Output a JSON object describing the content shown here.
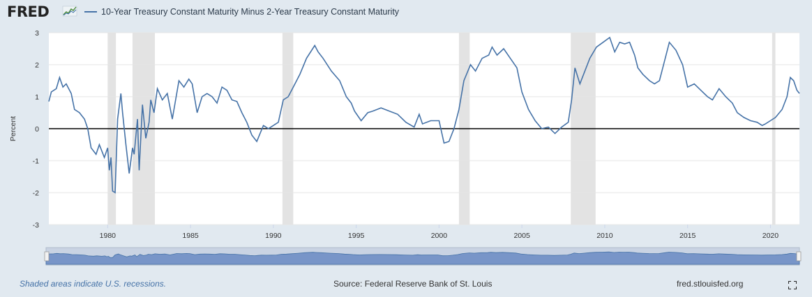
{
  "brand": {
    "name": "FRED"
  },
  "legend": {
    "label": "10-Year Treasury Constant Maturity Minus 2-Year Treasury Constant Maturity",
    "color": "#4572a7"
  },
  "footer": {
    "recession_note": "Shaded areas indicate U.S. recessions.",
    "source": "Source: Federal Reserve Bank of St. Louis",
    "site": "fred.stlouisfed.org"
  },
  "icons": {
    "fullscreen": "fullscreen-icon",
    "logo_graph": "line-graph-icon"
  },
  "chart_data": {
    "type": "line",
    "title": "",
    "xlabel": "",
    "ylabel": "Percent",
    "xlim": [
      1976.45,
      2021.75
    ],
    "ylim": [
      -3,
      3
    ],
    "y_ticks": [
      3,
      2,
      1,
      0,
      -1,
      -2,
      -3
    ],
    "x_ticks": [
      1980,
      1985,
      1990,
      1995,
      2000,
      2005,
      2010,
      2015,
      2020
    ],
    "grid": "horizontal",
    "legend_position": "top-left",
    "zero_line": true,
    "line_color": "#4572a7",
    "recession_color": "#e3e3e3",
    "recessions": [
      [
        1980.0,
        1980.5
      ],
      [
        1981.5,
        1982.85
      ],
      [
        1990.55,
        1991.2
      ],
      [
        2001.2,
        2001.85
      ],
      [
        2007.95,
        2009.45
      ],
      [
        2020.1,
        2020.3
      ]
    ],
    "series": [
      {
        "name": "10-Year Treasury Constant Maturity Minus 2-Year Treasury Constant Maturity",
        "x": [
          1976.45,
          1976.6,
          1976.9,
          1977.1,
          1977.3,
          1977.5,
          1977.8,
          1978.0,
          1978.3,
          1978.6,
          1978.8,
          1979.0,
          1979.3,
          1979.5,
          1979.8,
          1980.0,
          1980.1,
          1980.2,
          1980.3,
          1980.45,
          1980.6,
          1980.8,
          1980.9,
          1981.1,
          1981.3,
          1981.5,
          1981.6,
          1981.8,
          1981.9,
          1982.1,
          1982.3,
          1982.5,
          1982.6,
          1982.8,
          1983.0,
          1983.3,
          1983.6,
          1983.9,
          1984.3,
          1984.6,
          1984.9,
          1985.1,
          1985.4,
          1985.7,
          1986.0,
          1986.3,
          1986.6,
          1986.9,
          1987.2,
          1987.5,
          1987.8,
          1988.1,
          1988.4,
          1988.7,
          1989.0,
          1989.2,
          1989.4,
          1989.7,
          1990.0,
          1990.3,
          1990.6,
          1990.9,
          1991.2,
          1991.6,
          1992.0,
          1992.5,
          1992.7,
          1993.0,
          1993.5,
          1994.0,
          1994.4,
          1994.7,
          1994.9,
          1995.3,
          1995.7,
          1996.0,
          1996.5,
          1997.0,
          1997.5,
          1998.0,
          1998.5,
          1998.8,
          1999.0,
          1999.5,
          2000.0,
          2000.3,
          2000.6,
          2000.9,
          2001.2,
          2001.5,
          2001.9,
          2002.2,
          2002.6,
          2003.0,
          2003.2,
          2003.5,
          2003.9,
          2004.3,
          2004.7,
          2005.0,
          2005.4,
          2005.8,
          2006.2,
          2006.6,
          2007.0,
          2007.4,
          2007.8,
          2008.0,
          2008.2,
          2008.5,
          2008.8,
          2009.1,
          2009.5,
          2009.9,
          2010.3,
          2010.6,
          2010.9,
          2011.2,
          2011.5,
          2011.8,
          2012.0,
          2012.3,
          2012.7,
          2013.0,
          2013.3,
          2013.7,
          2013.9,
          2014.3,
          2014.7,
          2015.0,
          2015.4,
          2015.8,
          2016.2,
          2016.5,
          2016.9,
          2017.3,
          2017.7,
          2018.0,
          2018.4,
          2018.8,
          2019.2,
          2019.5,
          2019.7,
          2020.0,
          2020.3,
          2020.7,
          2021.0,
          2021.2,
          2021.4,
          2021.6,
          2021.75
        ],
        "y": [
          0.85,
          1.15,
          1.25,
          1.6,
          1.3,
          1.4,
          1.1,
          0.6,
          0.5,
          0.3,
          0.0,
          -0.6,
          -0.8,
          -0.5,
          -0.9,
          -0.6,
          -1.3,
          -0.9,
          -1.95,
          -2.0,
          0.3,
          1.1,
          0.5,
          -0.5,
          -1.4,
          -0.6,
          -0.8,
          0.3,
          -1.3,
          0.75,
          -0.3,
          0.2,
          0.9,
          0.5,
          1.25,
          0.9,
          1.1,
          0.3,
          1.5,
          1.3,
          1.55,
          1.4,
          0.5,
          1.0,
          1.1,
          1.0,
          0.8,
          1.3,
          1.2,
          0.9,
          0.85,
          0.5,
          0.2,
          -0.2,
          -0.4,
          -0.15,
          0.1,
          0.0,
          0.1,
          0.2,
          0.9,
          1.0,
          1.3,
          1.7,
          2.2,
          2.6,
          2.4,
          2.2,
          1.8,
          1.5,
          1.0,
          0.8,
          0.55,
          0.25,
          0.5,
          0.55,
          0.65,
          0.55,
          0.45,
          0.2,
          0.05,
          0.45,
          0.15,
          0.25,
          0.25,
          -0.45,
          -0.4,
          0.0,
          0.6,
          1.5,
          2.0,
          1.8,
          2.2,
          2.3,
          2.55,
          2.3,
          2.5,
          2.2,
          1.9,
          1.15,
          0.6,
          0.25,
          0.0,
          0.05,
          -0.15,
          0.05,
          0.2,
          0.9,
          1.9,
          1.4,
          1.8,
          2.2,
          2.55,
          2.7,
          2.85,
          2.4,
          2.7,
          2.65,
          2.7,
          2.3,
          1.9,
          1.7,
          1.5,
          1.4,
          1.5,
          2.3,
          2.7,
          2.45,
          2.0,
          1.3,
          1.4,
          1.2,
          1.0,
          0.9,
          1.25,
          1.0,
          0.8,
          0.5,
          0.35,
          0.25,
          0.2,
          0.1,
          0.15,
          0.25,
          0.35,
          0.6,
          1.0,
          1.6,
          1.5,
          1.2,
          1.1
        ]
      }
    ]
  }
}
